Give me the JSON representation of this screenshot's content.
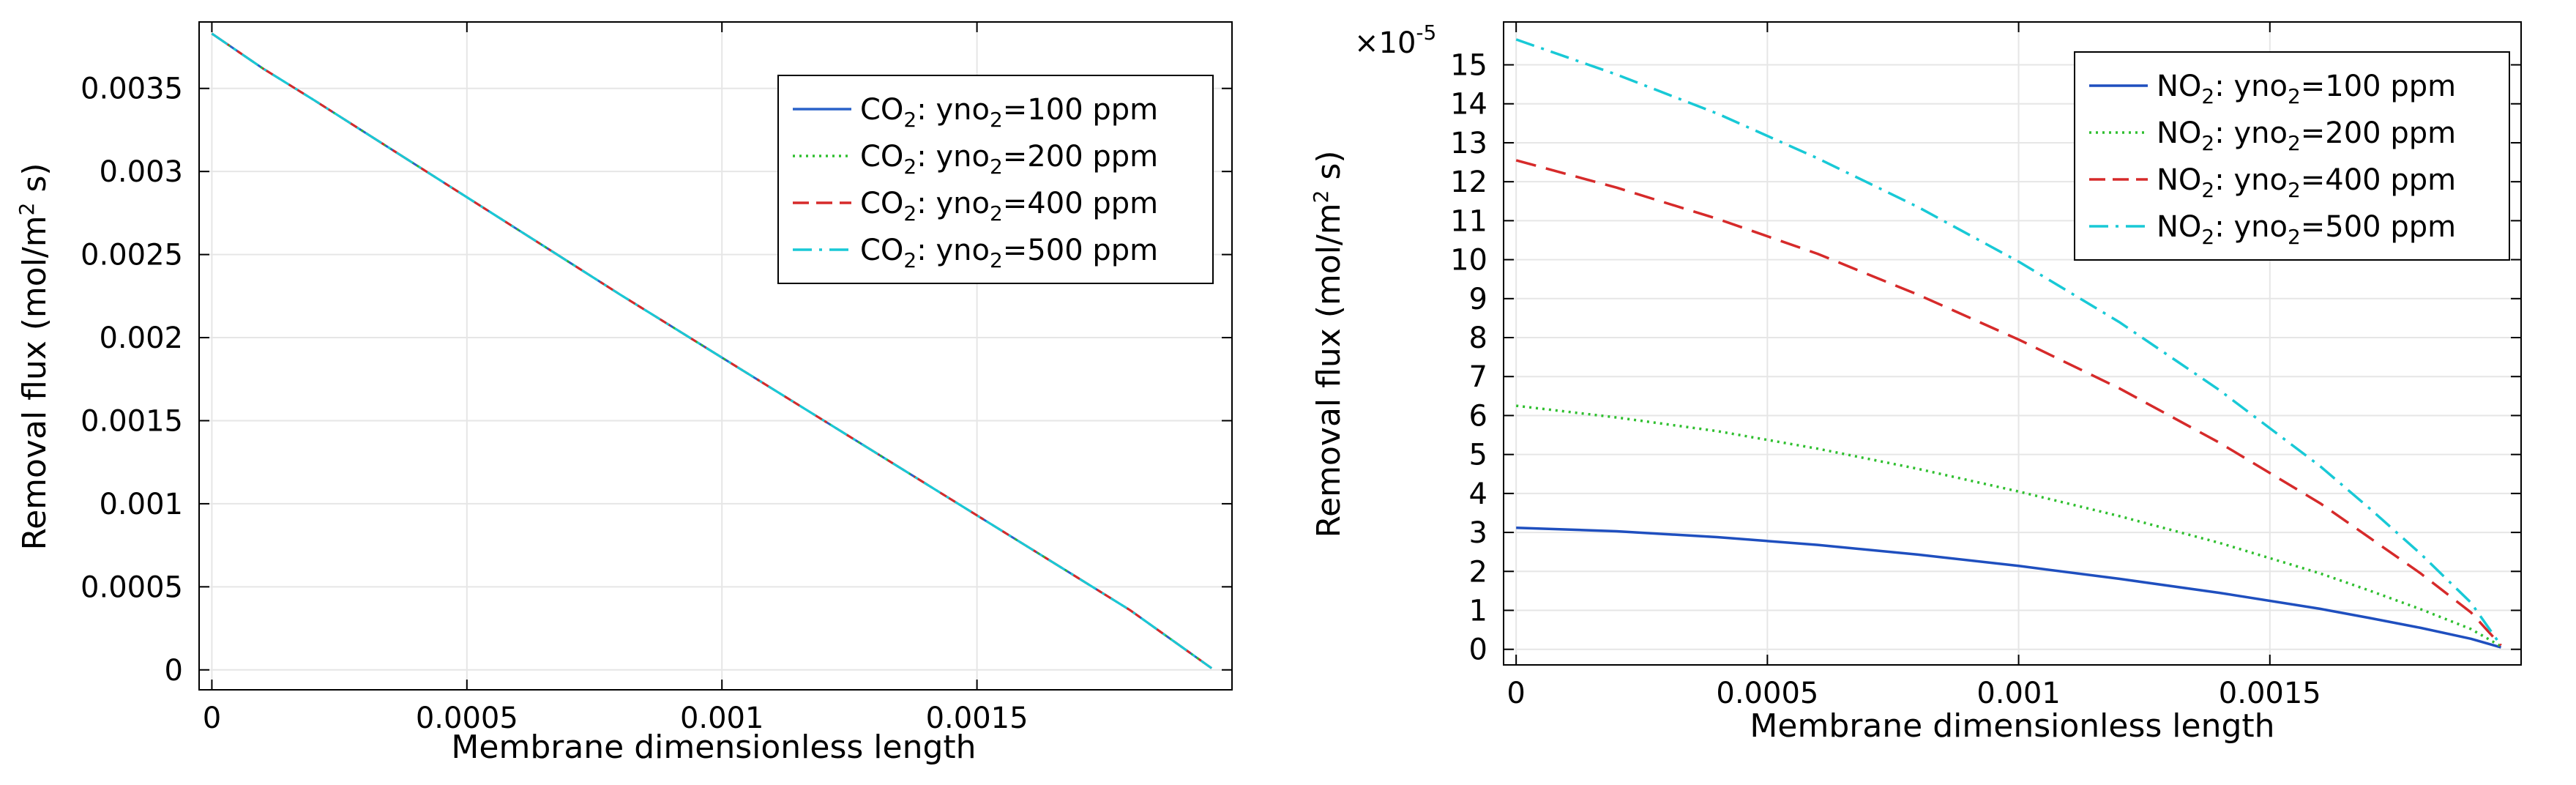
{
  "chart_data": [
    {
      "type": "line",
      "title": "",
      "xlabel": "Membrane dimensionless length",
      "ylabel": "Removal flux (mol/m",
      "ylabel_sup": "2",
      "ylabel_tail": " s)",
      "xlim": [
        -2.5e-05,
        0.002
      ],
      "ylim": [
        -0.00012,
        0.0039
      ],
      "grid": true,
      "legend_position": "top-right",
      "x_ticks": [
        0,
        0.0005,
        0.001,
        0.0015
      ],
      "x_tick_labels": [
        "0",
        "0.0005",
        "0.001",
        "0.0015"
      ],
      "y_ticks": [
        0,
        0.0005,
        0.001,
        0.0015,
        0.002,
        0.0025,
        0.003,
        0.0035
      ],
      "y_tick_labels": [
        "0",
        "0.0005",
        "0.001",
        "0.0015",
        "0.002",
        "0.0025",
        "0.003",
        "0.0035"
      ],
      "x": [
        0,
        0.0001,
        0.0002,
        0.0004,
        0.0006,
        0.0008,
        0.001,
        0.0012,
        0.0014,
        0.0016,
        0.0018,
        0.00196
      ],
      "series": [
        {
          "name": "CO2: yno2=100 ppm",
          "species": "CO",
          "species_sub": "2",
          "var": "yno",
          "var_sub": "2",
          "value": "=100 ppm",
          "color": "#2a62c9",
          "dash": "solid",
          "values": [
            0.00383,
            0.00362,
            0.00343,
            0.00304,
            0.00265,
            0.00226,
            0.00188,
            0.0015,
            0.00112,
            0.00074,
            0.00036,
            1e-05
          ]
        },
        {
          "name": "CO2: yno2=200 ppm",
          "species": "CO",
          "species_sub": "2",
          "var": "yno",
          "var_sub": "2",
          "value": "=200 ppm",
          "color": "#2fbf2f",
          "dash": "dotted",
          "values": [
            0.00383,
            0.00362,
            0.00343,
            0.00304,
            0.00265,
            0.00226,
            0.00188,
            0.0015,
            0.00112,
            0.00074,
            0.00036,
            1e-05
          ]
        },
        {
          "name": "CO2: yno2=400 ppm",
          "species": "CO",
          "species_sub": "2",
          "var": "yno",
          "var_sub": "2",
          "value": "=400 ppm",
          "color": "#d62a2a",
          "dash": "dashed",
          "values": [
            0.00383,
            0.00362,
            0.00343,
            0.00304,
            0.00265,
            0.00226,
            0.00188,
            0.0015,
            0.00112,
            0.00074,
            0.00036,
            1e-05
          ]
        },
        {
          "name": "CO2: yno2=500 ppm",
          "species": "CO",
          "species_sub": "2",
          "var": "yno",
          "var_sub": "2",
          "value": "=500 ppm",
          "color": "#18c9d6",
          "dash": "dashdot",
          "values": [
            0.00383,
            0.00362,
            0.00343,
            0.00304,
            0.00265,
            0.00226,
            0.00188,
            0.0015,
            0.00112,
            0.00074,
            0.00036,
            1e-05
          ]
        }
      ]
    },
    {
      "type": "line",
      "title": "",
      "xlabel": "Membrane dimensionless length",
      "ylabel": "Removal flux (mol/m",
      "ylabel_sup": "2",
      "ylabel_tail": " s)",
      "y_multiplier": "×10",
      "y_multiplier_exp": "-5",
      "xlim": [
        -2.5e-05,
        0.002
      ],
      "ylim": [
        -0.4,
        16.1
      ],
      "grid": true,
      "legend_position": "top-right",
      "x_ticks": [
        0,
        0.0005,
        0.001,
        0.0015
      ],
      "x_tick_labels": [
        "0",
        "0.0005",
        "0.001",
        "0.0015"
      ],
      "y_ticks": [
        0,
        1,
        2,
        3,
        4,
        5,
        6,
        7,
        8,
        9,
        10,
        11,
        12,
        13,
        14,
        15
      ],
      "y_tick_labels": [
        "0",
        "1",
        "2",
        "3",
        "4",
        "5",
        "6",
        "7",
        "8",
        "9",
        "10",
        "11",
        "12",
        "13",
        "14",
        "15"
      ],
      "x": [
        0,
        0.0002,
        0.0004,
        0.0006,
        0.0008,
        0.001,
        0.0012,
        0.0014,
        0.0016,
        0.0017,
        0.0018,
        0.0019,
        0.00196
      ],
      "series": [
        {
          "name": "NO2: yno2=100 ppm",
          "species": "NO",
          "species_sub": "2",
          "var": "yno",
          "var_sub": "2",
          "value": "=100 ppm",
          "color": "#1f4fbf",
          "dash": "solid",
          "values": [
            3.12,
            3.03,
            2.88,
            2.68,
            2.43,
            2.14,
            1.81,
            1.45,
            1.04,
            0.8,
            0.55,
            0.27,
            0.05
          ]
        },
        {
          "name": "NO2: yno2=200 ppm",
          "species": "NO",
          "species_sub": "2",
          "var": "yno",
          "var_sub": "2",
          "value": "=200 ppm",
          "color": "#2fbf2f",
          "dash": "dotted",
          "values": [
            6.25,
            5.95,
            5.6,
            5.15,
            4.63,
            4.05,
            3.42,
            2.73,
            1.95,
            1.5,
            1.03,
            0.52,
            0.08
          ]
        },
        {
          "name": "NO2: yno2=400 ppm",
          "species": "NO",
          "species_sub": "2",
          "var": "yno",
          "var_sub": "2",
          "value": "=400 ppm",
          "color": "#d62a2a",
          "dash": "dashed",
          "values": [
            12.55,
            11.85,
            11.05,
            10.15,
            9.1,
            7.95,
            6.7,
            5.3,
            3.75,
            2.85,
            1.95,
            0.95,
            0.1
          ]
        },
        {
          "name": "NO2: yno2=500 ppm",
          "species": "NO",
          "species_sub": "2",
          "var": "yno",
          "var_sub": "2",
          "value": "=500 ppm",
          "color": "#18c9d6",
          "dash": "dashdot",
          "values": [
            15.65,
            14.75,
            13.75,
            12.6,
            11.35,
            9.95,
            8.4,
            6.65,
            4.7,
            3.6,
            2.45,
            1.2,
            0.1
          ]
        }
      ]
    }
  ]
}
